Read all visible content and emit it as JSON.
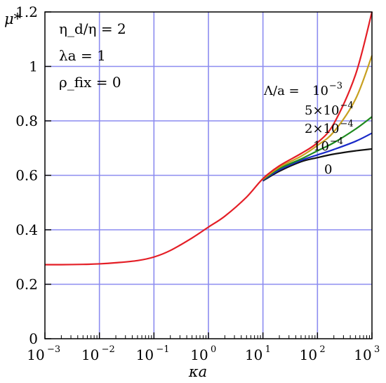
{
  "chart_data": {
    "type": "line",
    "title": "",
    "xlabel": "κa",
    "ylabel": "μ*",
    "xscale": "log",
    "xlim": [
      0.001,
      1000
    ],
    "ylim": [
      0,
      1.2
    ],
    "grid": true,
    "x_tick_labels": [
      {
        "base": "10",
        "exp": "−3"
      },
      {
        "base": "10",
        "exp": "−2"
      },
      {
        "base": "10",
        "exp": "−1"
      },
      {
        "base": "10",
        "exp": "0"
      },
      {
        "base": "10",
        "exp": "1"
      },
      {
        "base": "10",
        "exp": "2"
      },
      {
        "base": "10",
        "exp": "3"
      }
    ],
    "y_ticks": [
      0,
      0.2,
      0.4,
      0.6,
      0.8,
      1,
      1.2
    ],
    "y_tick_labels": [
      "0",
      "0.2",
      "0.4",
      "0.6",
      "0.8",
      "1",
      "1.2"
    ],
    "annotations": [
      "η_d/η = 2",
      "λa = 1",
      "ρ_fix = 0"
    ],
    "series_label_prefix": "Λ/a =",
    "series": [
      {
        "name": "10^-3",
        "color": "#e41e26",
        "label_base": "10",
        "label_exp": "−3",
        "x": [
          0.001,
          0.002,
          0.005,
          0.01,
          0.02,
          0.05,
          0.1,
          0.2,
          0.5,
          1,
          2,
          5,
          10,
          20,
          50,
          100,
          200,
          500,
          1000
        ],
        "y": [
          0.272,
          0.272,
          0.273,
          0.275,
          0.279,
          0.287,
          0.3,
          0.324,
          0.37,
          0.41,
          0.45,
          0.52,
          0.588,
          0.635,
          0.68,
          0.72,
          0.79,
          0.97,
          1.2
        ]
      },
      {
        "name": "5×10^-4",
        "color": "#c8a020",
        "label_base": "5×10",
        "label_exp": "−4",
        "x": [
          10,
          20,
          50,
          100,
          200,
          500,
          1000
        ],
        "y": [
          0.586,
          0.63,
          0.67,
          0.71,
          0.76,
          0.88,
          1.04
        ]
      },
      {
        "name": "2×10^-4",
        "color": "#1e8a1e",
        "label_base": "2×10",
        "label_exp": "−4",
        "x": [
          10,
          20,
          50,
          100,
          200,
          500,
          1000
        ],
        "y": [
          0.584,
          0.625,
          0.66,
          0.69,
          0.72,
          0.77,
          0.815
        ]
      },
      {
        "name": "10^-4",
        "color": "#1a2ac8",
        "label_base": "10",
        "label_exp": "−4",
        "x": [
          10,
          20,
          50,
          100,
          200,
          500,
          1000
        ],
        "y": [
          0.582,
          0.62,
          0.655,
          0.675,
          0.695,
          0.725,
          0.755
        ]
      },
      {
        "name": "0",
        "color": "#111111",
        "label_base": "0",
        "label_exp": "",
        "x": [
          10,
          20,
          50,
          100,
          200,
          500,
          1000
        ],
        "y": [
          0.58,
          0.615,
          0.65,
          0.665,
          0.678,
          0.69,
          0.697
        ]
      }
    ]
  }
}
